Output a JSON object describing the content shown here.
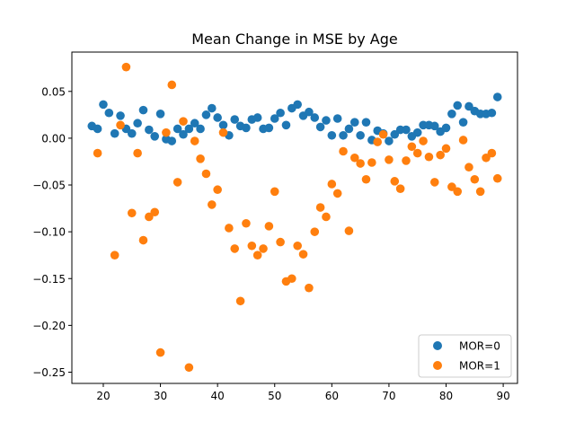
{
  "chart_data": {
    "type": "scatter",
    "title": "Mean Change in MSE by Age",
    "xlabel": "",
    "ylabel": "",
    "xlim": [
      14.5,
      92.5
    ],
    "ylim": [
      -0.262,
      0.092
    ],
    "x_ticks": [
      20,
      30,
      40,
      50,
      60,
      70,
      80,
      90
    ],
    "y_ticks": [
      0.05,
      0.0,
      -0.05,
      -0.1,
      -0.15,
      -0.2,
      -0.25
    ],
    "x_tick_labels": [
      "20",
      "30",
      "40",
      "50",
      "60",
      "70",
      "80",
      "90"
    ],
    "y_tick_labels": [
      "0.05",
      "0.00",
      "−0.05",
      "−0.10",
      "−0.15",
      "−0.20",
      "−0.25"
    ],
    "grid": false,
    "legend_position": "lower-right",
    "colors": {
      "MOR=0": "#1f77b4",
      "MOR=1": "#ff7f0e"
    },
    "series": [
      {
        "name": "MOR=0",
        "points": [
          [
            18,
            0.013
          ],
          [
            19,
            0.01
          ],
          [
            20,
            0.036
          ],
          [
            21,
            0.027
          ],
          [
            22,
            0.005
          ],
          [
            23,
            0.024
          ],
          [
            24,
            0.01
          ],
          [
            25,
            0.005
          ],
          [
            26,
            0.016
          ],
          [
            27,
            0.03
          ],
          [
            28,
            0.009
          ],
          [
            29,
            0.002
          ],
          [
            30,
            0.026
          ],
          [
            31,
            -0.001
          ],
          [
            32,
            -0.003
          ],
          [
            33,
            0.01
          ],
          [
            34,
            0.004
          ],
          [
            35,
            0.01
          ],
          [
            36,
            0.016
          ],
          [
            37,
            0.01
          ],
          [
            38,
            0.025
          ],
          [
            39,
            0.032
          ],
          [
            40,
            0.022
          ],
          [
            41,
            0.014
          ],
          [
            42,
            0.003
          ],
          [
            43,
            0.02
          ],
          [
            44,
            0.013
          ],
          [
            45,
            0.011
          ],
          [
            46,
            0.02
          ],
          [
            47,
            0.022
          ],
          [
            48,
            0.01
          ],
          [
            49,
            0.011
          ],
          [
            50,
            0.021
          ],
          [
            51,
            0.027
          ],
          [
            52,
            0.014
          ],
          [
            53,
            0.032
          ],
          [
            54,
            0.036
          ],
          [
            55,
            0.024
          ],
          [
            56,
            0.028
          ],
          [
            57,
            0.022
          ],
          [
            58,
            0.012
          ],
          [
            59,
            0.019
          ],
          [
            60,
            0.003
          ],
          [
            61,
            0.021
          ],
          [
            62,
            0.003
          ],
          [
            63,
            0.01
          ],
          [
            64,
            0.017
          ],
          [
            65,
            0.003
          ],
          [
            66,
            0.017
          ],
          [
            67,
            -0.002
          ],
          [
            68,
            0.008
          ],
          [
            69,
            0.005
          ],
          [
            70,
            -0.003
          ],
          [
            71,
            0.004
          ],
          [
            72,
            0.009
          ],
          [
            73,
            0.009
          ],
          [
            74,
            0.002
          ],
          [
            75,
            0.006
          ],
          [
            76,
            0.014
          ],
          [
            77,
            0.014
          ],
          [
            78,
            0.013
          ],
          [
            79,
            0.007
          ],
          [
            80,
            0.011
          ],
          [
            81,
            0.026
          ],
          [
            82,
            0.035
          ],
          [
            83,
            0.017
          ],
          [
            84,
            0.034
          ],
          [
            85,
            0.029
          ],
          [
            86,
            0.026
          ],
          [
            87,
            0.026
          ],
          [
            88,
            0.027
          ],
          [
            89,
            0.044
          ]
        ]
      },
      {
        "name": "MOR=1",
        "points": [
          [
            19,
            -0.016
          ],
          [
            22,
            -0.125
          ],
          [
            23,
            0.014
          ],
          [
            24,
            0.076
          ],
          [
            25,
            -0.08
          ],
          [
            26,
            -0.016
          ],
          [
            27,
            -0.109
          ],
          [
            28,
            -0.084
          ],
          [
            29,
            -0.079
          ],
          [
            30,
            -0.229
          ],
          [
            31,
            0.006
          ],
          [
            32,
            0.057
          ],
          [
            33,
            -0.047
          ],
          [
            34,
            0.018
          ],
          [
            35,
            -0.245
          ],
          [
            36,
            -0.003
          ],
          [
            37,
            -0.022
          ],
          [
            38,
            -0.038
          ],
          [
            39,
            -0.071
          ],
          [
            40,
            -0.055
          ],
          [
            41,
            0.006
          ],
          [
            42,
            -0.096
          ],
          [
            43,
            -0.118
          ],
          [
            44,
            -0.174
          ],
          [
            45,
            -0.091
          ],
          [
            46,
            -0.115
          ],
          [
            47,
            -0.125
          ],
          [
            48,
            -0.118
          ],
          [
            49,
            -0.094
          ],
          [
            50,
            -0.057
          ],
          [
            51,
            -0.111
          ],
          [
            52,
            -0.153
          ],
          [
            53,
            -0.15
          ],
          [
            54,
            -0.115
          ],
          [
            55,
            -0.124
          ],
          [
            56,
            -0.16
          ],
          [
            57,
            -0.1
          ],
          [
            58,
            -0.074
          ],
          [
            59,
            -0.084
          ],
          [
            60,
            -0.049
          ],
          [
            61,
            -0.059
          ],
          [
            62,
            -0.014
          ],
          [
            63,
            -0.099
          ],
          [
            64,
            -0.021
          ],
          [
            65,
            -0.027
          ],
          [
            66,
            -0.044
          ],
          [
            67,
            -0.026
          ],
          [
            68,
            -0.004
          ],
          [
            69,
            0.004
          ],
          [
            70,
            -0.023
          ],
          [
            71,
            -0.046
          ],
          [
            72,
            -0.054
          ],
          [
            73,
            -0.024
          ],
          [
            74,
            -0.009
          ],
          [
            75,
            -0.016
          ],
          [
            76,
            -0.003
          ],
          [
            77,
            -0.02
          ],
          [
            78,
            -0.047
          ],
          [
            79,
            -0.018
          ],
          [
            80,
            -0.011
          ],
          [
            81,
            -0.052
          ],
          [
            82,
            -0.057
          ],
          [
            83,
            -0.002
          ],
          [
            84,
            -0.031
          ],
          [
            85,
            -0.044
          ],
          [
            86,
            -0.057
          ],
          [
            87,
            -0.021
          ],
          [
            88,
            -0.016
          ],
          [
            89,
            -0.043
          ]
        ]
      }
    ]
  }
}
